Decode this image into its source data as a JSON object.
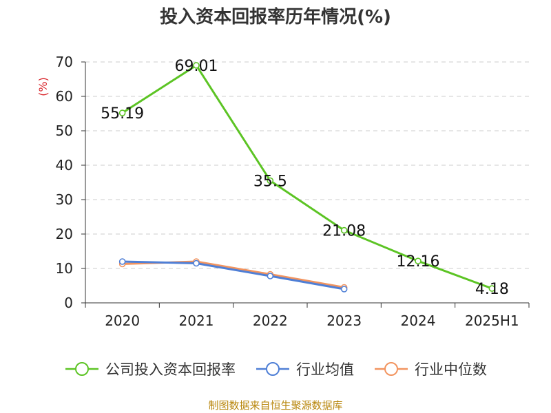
{
  "title": "投入资本回报率历年情况(%)",
  "footer": "制图数据来自恒生聚源数据库",
  "chart_data": {
    "type": "line",
    "categories": [
      "2020",
      "2021",
      "2022",
      "2023",
      "2024",
      "2025H1"
    ],
    "ylabel": "(%)",
    "ylim": [
      0,
      70
    ],
    "yticks": [
      0,
      10,
      20,
      30,
      40,
      50,
      60,
      70
    ],
    "grid": true,
    "legend_position": "bottom",
    "series": [
      {
        "name": "公司投入资本回报率",
        "color": "#5cc424",
        "values": [
          55.19,
          69.01,
          35.5,
          21.08,
          12.16,
          4.18
        ],
        "labels": [
          "55.19",
          "69.01",
          "35.5",
          "21.08",
          "12.16",
          "4.18"
        ]
      },
      {
        "name": "行业均值",
        "color": "#4f7fd6",
        "values": [
          12.0,
          11.5,
          7.8,
          4.0,
          null,
          null
        ]
      },
      {
        "name": "行业中位数",
        "color": "#f2945f",
        "values": [
          11.3,
          12.0,
          8.3,
          4.5,
          null,
          null
        ]
      }
    ]
  }
}
